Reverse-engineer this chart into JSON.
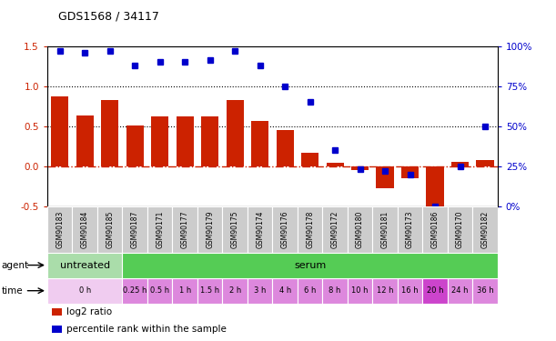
{
  "title": "GDS1568 / 34117",
  "samples": [
    "GSM90183",
    "GSM90184",
    "GSM90185",
    "GSM90187",
    "GSM90171",
    "GSM90177",
    "GSM90179",
    "GSM90175",
    "GSM90174",
    "GSM90176",
    "GSM90178",
    "GSM90172",
    "GSM90180",
    "GSM90181",
    "GSM90173",
    "GSM90186",
    "GSM90170",
    "GSM90182"
  ],
  "log2_ratio": [
    0.87,
    0.63,
    0.83,
    0.51,
    0.62,
    0.62,
    0.62,
    0.83,
    0.56,
    0.45,
    0.17,
    0.04,
    -0.05,
    -0.28,
    -0.15,
    -0.53,
    0.05,
    0.08
  ],
  "percentile": [
    97,
    96,
    97,
    88,
    90,
    90,
    91,
    97,
    88,
    75,
    65,
    35,
    23,
    22,
    20,
    0,
    25,
    50
  ],
  "bar_color": "#cc2200",
  "dot_color": "#0000cc",
  "ylim_left": [
    -0.5,
    1.5
  ],
  "ylim_right": [
    0,
    100
  ],
  "yticks_left": [
    -0.5,
    0.0,
    0.5,
    1.0,
    1.5
  ],
  "yticks_right": [
    0,
    25,
    50,
    75,
    100
  ],
  "hlines_dotted": [
    0.5,
    1.0
  ],
  "hline_dashdot": 0.0,
  "agent_labels": [
    {
      "label": "untreated",
      "start": 0,
      "end": 3,
      "color": "#aaddaa"
    },
    {
      "label": "serum",
      "start": 3,
      "end": 18,
      "color": "#55cc55"
    }
  ],
  "time_labels": [
    {
      "label": "0 h",
      "start": 0,
      "end": 3,
      "color": "#f0ccf0"
    },
    {
      "label": "0.25 h",
      "start": 3,
      "end": 4,
      "color": "#dd88dd"
    },
    {
      "label": "0.5 h",
      "start": 4,
      "end": 5,
      "color": "#dd88dd"
    },
    {
      "label": "1 h",
      "start": 5,
      "end": 6,
      "color": "#dd88dd"
    },
    {
      "label": "1.5 h",
      "start": 6,
      "end": 7,
      "color": "#dd88dd"
    },
    {
      "label": "2 h",
      "start": 7,
      "end": 8,
      "color": "#dd88dd"
    },
    {
      "label": "3 h",
      "start": 8,
      "end": 9,
      "color": "#dd88dd"
    },
    {
      "label": "4 h",
      "start": 9,
      "end": 10,
      "color": "#dd88dd"
    },
    {
      "label": "6 h",
      "start": 10,
      "end": 11,
      "color": "#dd88dd"
    },
    {
      "label": "8 h",
      "start": 11,
      "end": 12,
      "color": "#dd88dd"
    },
    {
      "label": "10 h",
      "start": 12,
      "end": 13,
      "color": "#dd88dd"
    },
    {
      "label": "12 h",
      "start": 13,
      "end": 14,
      "color": "#dd88dd"
    },
    {
      "label": "16 h",
      "start": 14,
      "end": 15,
      "color": "#dd88dd"
    },
    {
      "label": "20 h",
      "start": 15,
      "end": 16,
      "color": "#cc44cc"
    },
    {
      "label": "24 h",
      "start": 16,
      "end": 17,
      "color": "#dd88dd"
    },
    {
      "label": "36 h",
      "start": 17,
      "end": 18,
      "color": "#dd88dd"
    }
  ],
  "legend_items": [
    {
      "label": "log2 ratio",
      "color": "#cc2200"
    },
    {
      "label": "percentile rank within the sample",
      "color": "#0000cc"
    }
  ],
  "bg_color": "#ffffff",
  "sample_bg": "#cccccc",
  "zero_line_color": "#cc2200",
  "dotted_line_color": "#000000"
}
